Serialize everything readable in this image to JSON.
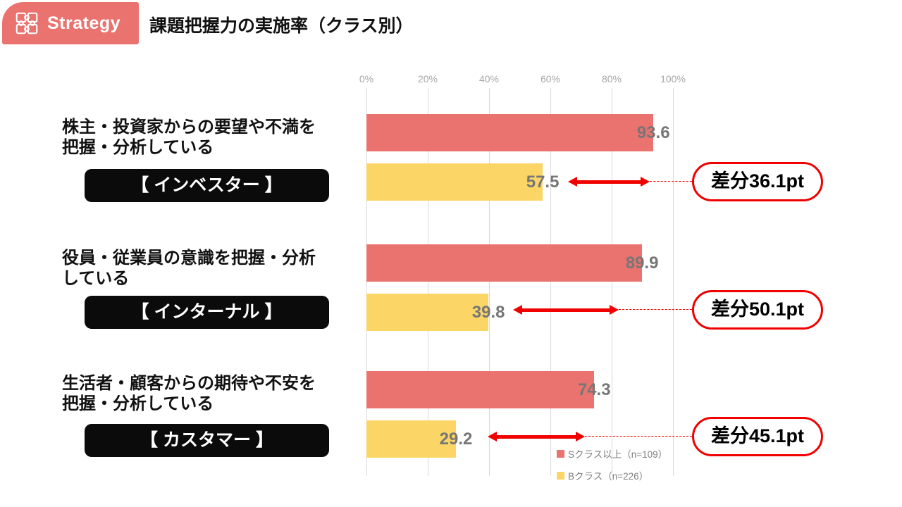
{
  "header": {
    "badge_label": "Strategy",
    "title": "課題把握力の実施率（クラス別）",
    "badge_color": "#ea736f"
  },
  "chart_data": {
    "type": "bar",
    "orientation": "horizontal",
    "title": "課題把握力の実施率（クラス別）",
    "axis": {
      "range": [
        0,
        100
      ],
      "unit": "%",
      "ticks": [
        "0%",
        "20%",
        "40%",
        "60%",
        "80%",
        "100%"
      ],
      "grid": true
    },
    "categories": [
      {
        "text": "株主・投資家からの要望や不満を\n把握・分析している",
        "tag": "【 インベスター 】"
      },
      {
        "text": "役員・従業員の意識を把握・分析\nしている",
        "tag": "【 インターナル 】"
      },
      {
        "text": "生活者・顧客からの期待や不安を\n把握・分析している",
        "tag": "【 カスタマー 】"
      }
    ],
    "series": [
      {
        "name": "Sクラス以上（n=109）",
        "color": "#ea736f",
        "values": [
          93.6,
          89.9,
          74.3
        ]
      },
      {
        "name": "Bクラス（n=226）",
        "color": "#fbd565",
        "values": [
          57.5,
          39.8,
          29.2
        ]
      }
    ],
    "diff_labels": [
      "差分36.1pt",
      "差分50.1pt",
      "差分45.1pt"
    ],
    "diff_color": "#f10000",
    "value_label_color": "#767676",
    "legend_position": "bottom-right"
  }
}
